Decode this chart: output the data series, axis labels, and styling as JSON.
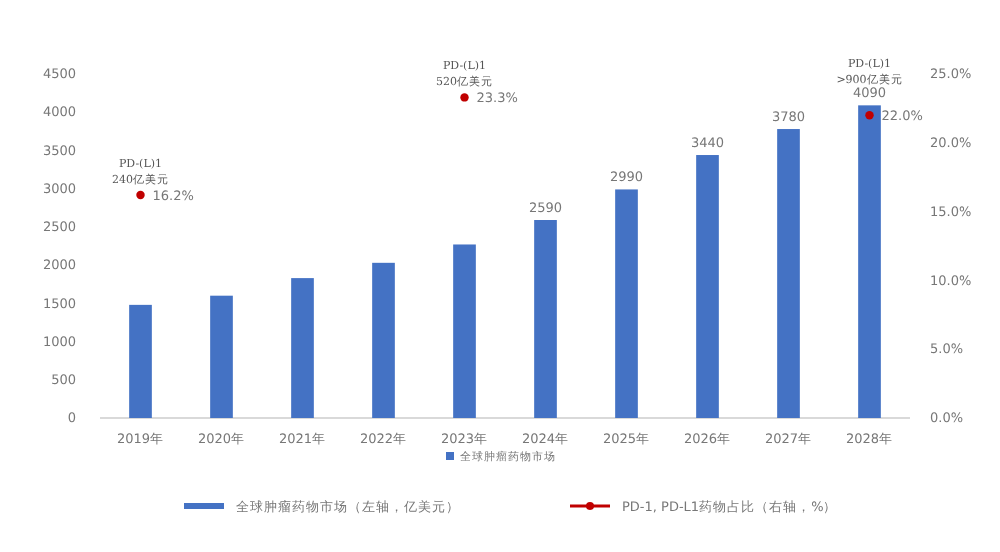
{
  "chart_data": {
    "type": "bar",
    "categories": [
      "2019年",
      "2020年",
      "2021年",
      "2022年",
      "2023年",
      "2024年",
      "2025年",
      "2026年",
      "2027年",
      "2028年"
    ],
    "series": [
      {
        "name": "全球肿瘤药物市场（左轴，亿美元）",
        "color": "#4472c4",
        "values": [
          1480,
          1600,
          1830,
          2030,
          2270,
          2590,
          2990,
          3440,
          3780,
          4090
        ],
        "value_labels": [
          null,
          null,
          null,
          null,
          null,
          "2590",
          "2990",
          "3440",
          "3780",
          "4090"
        ]
      },
      {
        "name": "PD-1, PD-L1药物占比（右轴，%）",
        "type": "scatter",
        "axis": "y2",
        "color": "#c00000",
        "marker": "circle",
        "values": [
          16.2,
          null,
          null,
          null,
          23.3,
          null,
          null,
          null,
          null,
          22.0
        ],
        "value_labels": [
          "16.2%",
          null,
          null,
          null,
          "23.3%",
          null,
          null,
          null,
          null,
          "22.0%"
        ]
      }
    ],
    "ylim": [
      0,
      4500
    ],
    "yticks": [
      0,
      500,
      1000,
      1500,
      2000,
      2500,
      3000,
      3500,
      4000,
      4500
    ],
    "y2lim": [
      0,
      25
    ],
    "y2ticks": [
      {
        "value": 0,
        "label": "0.0%"
      },
      {
        "value": 5,
        "label": "5.0%"
      },
      {
        "value": 10,
        "label": "10.0%"
      },
      {
        "value": 15,
        "label": "15.0%"
      },
      {
        "value": 20,
        "label": "20.0%"
      },
      {
        "value": 25,
        "label": "25.0%"
      }
    ],
    "annotations": [
      "PD-(L)1\n240亿美元",
      "PD-(L)1\n520亿美元",
      "PD-(L)1\n>900亿美元",
      "全球肿瘤药物市场"
    ],
    "legend": "bottom",
    "grid": false
  }
}
